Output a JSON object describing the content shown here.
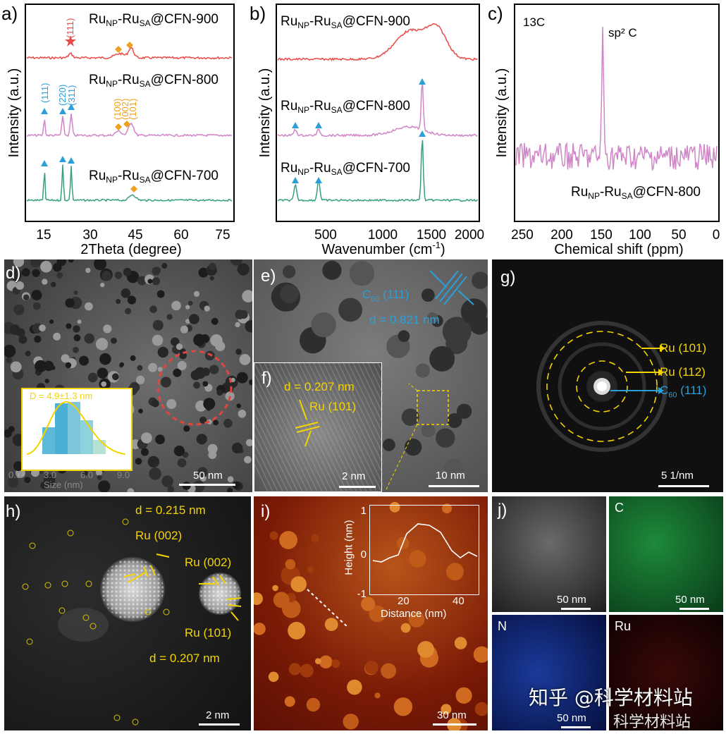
{
  "panel_a": {
    "label": "a)",
    "ylabel": "Intensity (a.u.)",
    "xlabel": "2Theta (degree)",
    "xticks": [
      "15",
      "30",
      "45",
      "60",
      "75"
    ],
    "curves": [
      {
        "name": "Ru_NP-Ru_SA@CFN-900",
        "color": "#e84a47"
      },
      {
        "name": "Ru_NP-Ru_SA@CFN-800",
        "color": "#cf85c6"
      },
      {
        "name": "Ru_NP-Ru_SA@CFN-700",
        "color": "#35a07b"
      }
    ],
    "peak_labels": {
      "star": "(111)",
      "blue": [
        "(111)",
        "(220)",
        "(311)"
      ],
      "orange": [
        "(100)",
        "(002)",
        "(101)"
      ]
    }
  },
  "panel_b": {
    "label": "b)",
    "ylabel": "Intensity (a.u.)",
    "xlabel": "Wavenumber (cm",
    "xlabel_sup": "-1",
    "xlabel_end": ")",
    "xticks": [
      "500",
      "1000",
      "1500",
      "2000"
    ]
  },
  "panel_c": {
    "label": "c)",
    "ylabel": "Intensity (a.u.)",
    "xlabel": "Chemical shift (ppm)",
    "xticks": [
      "250",
      "200",
      "150",
      "100",
      "50",
      "0"
    ],
    "nucleus": "13C",
    "peak": "sp² C",
    "sample": "Ru_NP-Ru_SA@CFN-800"
  },
  "sample_names": {
    "part1": "Ru",
    "np": "NP",
    "part2": "-Ru",
    "sa": "SA",
    "s900": "@CFN-900",
    "s800": "@CFN-800",
    "s700": "@CFN-700"
  },
  "panel_d": {
    "label": "d)",
    "scale": "50 nm",
    "inset_text": "D = 4.9±1.3 nm",
    "inset_ticks": [
      "0.0",
      "3.0",
      "6.0",
      "9.0"
    ],
    "inset_xlabel": "Size (nm)"
  },
  "panel_e": {
    "label": "e)",
    "scale": "10 nm",
    "plane": "C",
    "plane_sub": "60",
    "plane_hkl": " (111)",
    "d": "d = 0.821 nm"
  },
  "panel_f": {
    "label": "f)",
    "scale": "2 nm",
    "d": "d = 0.207 nm",
    "plane": "Ru (101)"
  },
  "panel_g": {
    "label": "g)",
    "scale": "5 1/nm",
    "rings": [
      "Ru (101)",
      "Ru (112)"
    ],
    "c60": "C",
    "c60_sub": "60",
    "c60_hkl": " (111)"
  },
  "panel_h": {
    "label": "h)",
    "scale": "2 nm",
    "d1": "d = 0.215 nm",
    "r1": "Ru (002)",
    "r2": "Ru (002)",
    "r3": "Ru (101)",
    "d2": "d = 0.207 nm"
  },
  "panel_i": {
    "label": "i)",
    "scale": "30 nm",
    "ylabel": "Height (nm)",
    "xlabel": "Distance (nm)",
    "yticks": [
      "1",
      "0",
      "-1"
    ],
    "xticks": [
      "20",
      "40"
    ]
  },
  "panel_j": {
    "label": "j)",
    "tiles": [
      {
        "name": "",
        "scale": "50 nm"
      },
      {
        "name": "C",
        "scale": "50 nm"
      },
      {
        "name": "N",
        "scale": "50 nm"
      },
      {
        "name": "Ru",
        "scale": ""
      }
    ]
  },
  "watermark": {
    "line1": "知乎 @科学材料站",
    "line2": "科学材料站"
  },
  "colors": {
    "red": "#e84a47",
    "pink": "#cf85c6",
    "green": "#35a07b",
    "blue": "#2a9fd8",
    "yellow": "#f4d400",
    "orange": "#f0a020"
  }
}
